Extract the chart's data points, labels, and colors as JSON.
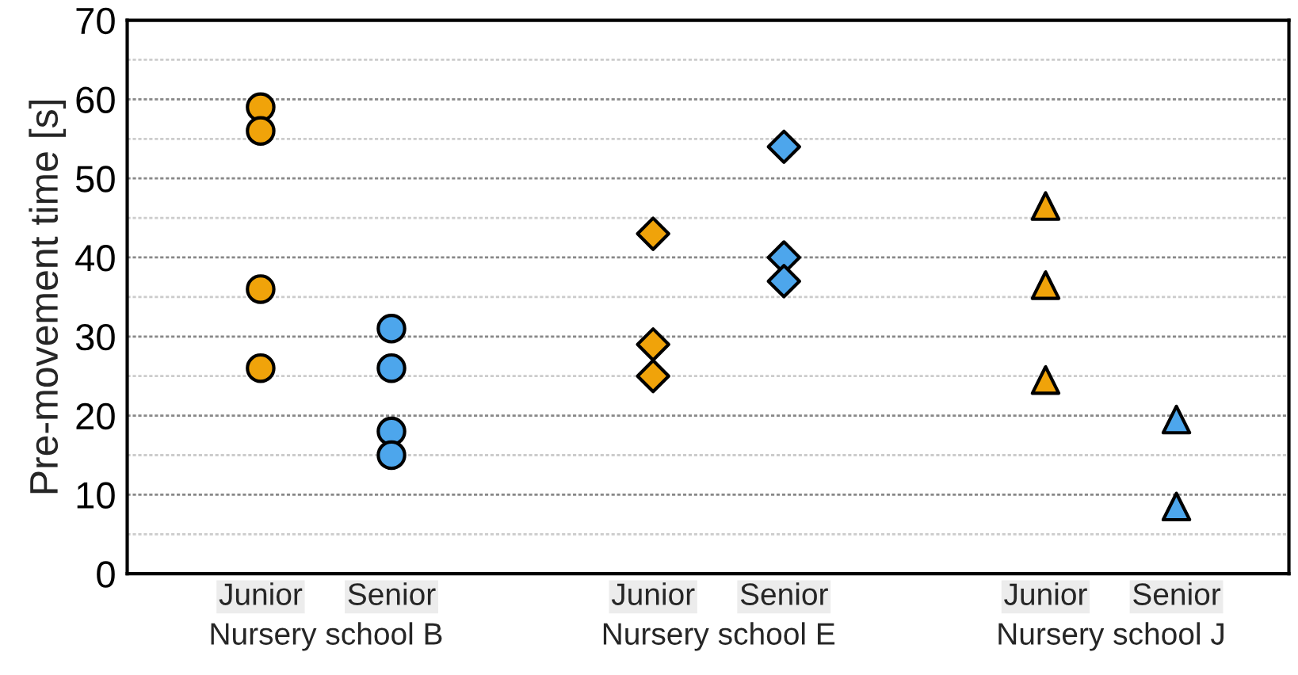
{
  "chart_data": {
    "type": "scatter",
    "ylabel": "Pre-movement time [s]",
    "annotations": [
      "Nursery school B",
      "Nursery school E",
      "Nursery school J"
    ],
    "categories": [
      "Junior",
      "Senior",
      null,
      "Junior",
      "Senior",
      null,
      "Junior",
      "Senior"
    ],
    "series": [
      {
        "marker": "circle",
        "colors": [
          "#f0a30a",
          "#4da6ec",
          null,
          null,
          null,
          null,
          null,
          null
        ],
        "values": [
          59,
          31,
          null,
          null,
          null,
          null,
          null,
          null
        ]
      },
      {
        "marker": "circle",
        "colors": [
          "#f0a30a",
          "#4da6ec",
          null,
          null,
          null,
          null,
          null,
          null
        ],
        "values": [
          56,
          26,
          null,
          null,
          null,
          null,
          null,
          null
        ]
      },
      {
        "marker": "circle",
        "colors": [
          "#f0a30a",
          "#4da6ec",
          null,
          null,
          null,
          null,
          null,
          null
        ],
        "values": [
          36,
          18,
          null,
          null,
          null,
          null,
          null,
          null
        ]
      },
      {
        "marker": "circle",
        "colors": [
          "#f0a30a",
          "#4da6ec",
          null,
          null,
          null,
          null,
          null,
          null
        ],
        "values": [
          26,
          15,
          null,
          null,
          null,
          null,
          null,
          null
        ]
      },
      {
        "marker": "diamond",
        "colors": [
          null,
          null,
          null,
          "#f0a30a",
          "#4da6ec",
          null,
          null,
          null
        ],
        "values": [
          null,
          null,
          null,
          43,
          54,
          null,
          null,
          null
        ]
      },
      {
        "marker": "diamond",
        "colors": [
          null,
          null,
          null,
          "#f0a30a",
          "#4da6ec",
          null,
          null,
          null
        ],
        "values": [
          null,
          null,
          null,
          29,
          40,
          null,
          null,
          null
        ]
      },
      {
        "marker": "diamond",
        "colors": [
          null,
          null,
          null,
          "#f0a30a",
          "#4da6ec",
          null,
          null,
          null
        ],
        "values": [
          null,
          null,
          null,
          25,
          37,
          null,
          null,
          null
        ]
      },
      {
        "marker": "triangle",
        "colors": [
          null,
          null,
          null,
          null,
          null,
          null,
          "#f0a30a",
          "#4da6ec"
        ],
        "values": [
          null,
          null,
          null,
          null,
          null,
          null,
          46.5,
          19.5
        ]
      },
      {
        "marker": "triangle",
        "colors": [
          null,
          null,
          null,
          null,
          null,
          null,
          "#f0a30a",
          "#4da6ec"
        ],
        "values": [
          null,
          null,
          null,
          null,
          null,
          null,
          36.5,
          8.5
        ]
      },
      {
        "marker": "triangle",
        "colors": [
          null,
          null,
          null,
          null,
          null,
          null,
          "#f0a30a",
          null
        ],
        "values": [
          null,
          null,
          null,
          null,
          null,
          null,
          24.5,
          null
        ]
      }
    ],
    "ylim": [
      0,
      70
    ],
    "yticks": [
      0,
      {
        "value": 5,
        "label": null
      },
      10,
      {
        "value": 15,
        "label": null
      },
      20,
      {
        "value": 25,
        "label": null
      },
      30,
      {
        "value": 35,
        "label": null
      },
      40,
      {
        "value": 45,
        "label": null
      },
      50,
      {
        "value": 55,
        "label": null
      },
      60,
      {
        "value": 65,
        "label": null
      },
      70
    ],
    "grid": "y"
  }
}
